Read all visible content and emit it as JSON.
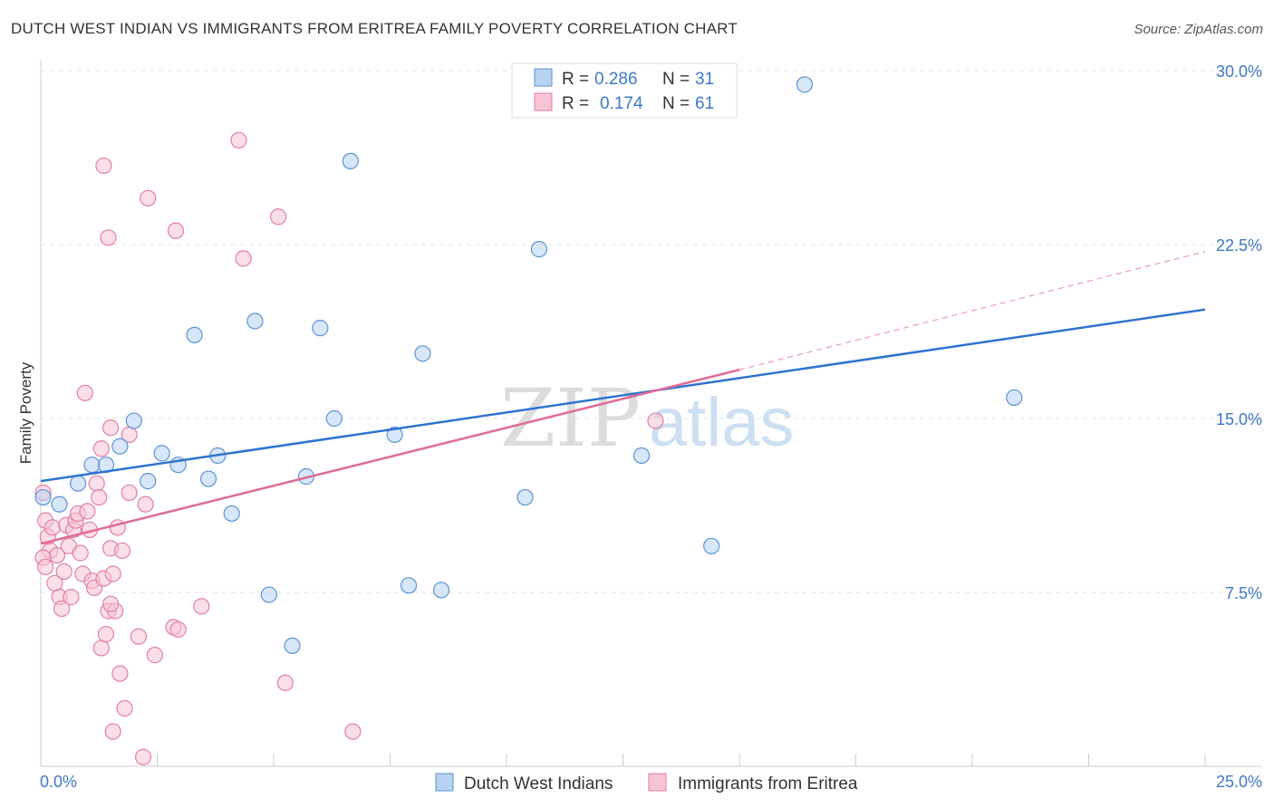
{
  "title": "DUTCH WEST INDIAN VS IMMIGRANTS FROM ERITREA FAMILY POVERTY CORRELATION CHART",
  "source": "Source: ZipAtlas.com",
  "watermark": {
    "zip": "ZIP",
    "atlas": "atlas"
  },
  "colors": {
    "blue_fill": "#b8d3f2",
    "blue_stroke": "#5b93d6",
    "blue_line": "#2f73d0",
    "pink_fill": "#f7c4d6",
    "pink_stroke": "#e27fa2",
    "pink_line": "#e06c96",
    "grid": "#e3e3e3",
    "tick_text": "#3d78c6"
  },
  "legend": {
    "rows": [
      {
        "r_label": "R =",
        "r_value": "0.286",
        "n_label": "N =",
        "n_value": "31"
      },
      {
        "r_label": "R =",
        "r_value": "0.174",
        "n_label": "N =",
        "n_value": "61"
      }
    ]
  },
  "bottom_legend": [
    {
      "label": "Dutch West Indians"
    },
    {
      "label": "Immigrants from Eritrea"
    }
  ],
  "chart_data": {
    "type": "scatter",
    "title": "DUTCH WEST INDIAN VS IMMIGRANTS FROM ERITREA FAMILY POVERTY CORRELATION CHART",
    "xlabel": "",
    "ylabel": "Family Poverty",
    "xlim": [
      0,
      25
    ],
    "ylim": [
      0,
      30
    ],
    "x_tick_labels": [
      "0.0%",
      "25.0%"
    ],
    "y_ticks": [
      7.5,
      15.0,
      22.5,
      30.0
    ],
    "y_tick_labels": [
      "7.5%",
      "15.0%",
      "22.5%",
      "30.0%"
    ],
    "grid": true,
    "legend_position": "top-center",
    "series": [
      {
        "name": "Dutch West Indians",
        "r": 0.286,
        "n": 31,
        "trend": {
          "x": [
            0,
            25
          ],
          "y": [
            12.3,
            19.7
          ],
          "dashed_extension": false
        },
        "points": [
          {
            "x": 0.05,
            "y": 11.6
          },
          {
            "x": 0.4,
            "y": 11.3
          },
          {
            "x": 0.8,
            "y": 12.2
          },
          {
            "x": 1.1,
            "y": 13.0
          },
          {
            "x": 1.4,
            "y": 13.0
          },
          {
            "x": 1.7,
            "y": 13.8
          },
          {
            "x": 2.0,
            "y": 14.9
          },
          {
            "x": 2.3,
            "y": 12.3
          },
          {
            "x": 2.6,
            "y": 13.5
          },
          {
            "x": 2.95,
            "y": 13.0
          },
          {
            "x": 3.3,
            "y": 18.6
          },
          {
            "x": 3.6,
            "y": 12.4
          },
          {
            "x": 3.8,
            "y": 13.4
          },
          {
            "x": 4.1,
            "y": 10.9
          },
          {
            "x": 4.6,
            "y": 19.2
          },
          {
            "x": 4.9,
            "y": 7.4
          },
          {
            "x": 5.4,
            "y": 5.2
          },
          {
            "x": 5.7,
            "y": 12.5
          },
          {
            "x": 6.0,
            "y": 18.9
          },
          {
            "x": 6.3,
            "y": 15.0
          },
          {
            "x": 6.65,
            "y": 26.1
          },
          {
            "x": 7.6,
            "y": 14.3
          },
          {
            "x": 7.9,
            "y": 7.8
          },
          {
            "x": 8.2,
            "y": 17.8
          },
          {
            "x": 8.6,
            "y": 7.6
          },
          {
            "x": 10.4,
            "y": 11.6
          },
          {
            "x": 10.7,
            "y": 22.3
          },
          {
            "x": 12.9,
            "y": 13.4
          },
          {
            "x": 14.4,
            "y": 9.5
          },
          {
            "x": 16.4,
            "y": 29.4
          },
          {
            "x": 20.9,
            "y": 15.9
          }
        ]
      },
      {
        "name": "Immigrants from Eritrea",
        "r": 0.174,
        "n": 61,
        "trend": {
          "x": [
            0,
            15
          ],
          "y": [
            9.6,
            17.1
          ],
          "dashed_extension_to": [
            25,
            22.2
          ]
        },
        "points": [
          {
            "x": 0.05,
            "y": 11.8
          },
          {
            "x": 0.1,
            "y": 10.6
          },
          {
            "x": 0.15,
            "y": 9.9
          },
          {
            "x": 0.2,
            "y": 9.3
          },
          {
            "x": 0.25,
            "y": 10.3
          },
          {
            "x": 0.3,
            "y": 7.9
          },
          {
            "x": 0.35,
            "y": 9.1
          },
          {
            "x": 0.4,
            "y": 7.3
          },
          {
            "x": 0.45,
            "y": 6.8
          },
          {
            "x": 0.5,
            "y": 8.4
          },
          {
            "x": 0.55,
            "y": 10.4
          },
          {
            "x": 0.6,
            "y": 9.5
          },
          {
            "x": 0.65,
            "y": 7.3
          },
          {
            "x": 0.7,
            "y": 10.2
          },
          {
            "x": 0.75,
            "y": 10.6
          },
          {
            "x": 0.8,
            "y": 10.9
          },
          {
            "x": 0.85,
            "y": 9.2
          },
          {
            "x": 0.9,
            "y": 8.3
          },
          {
            "x": 0.95,
            "y": 16.1
          },
          {
            "x": 1.0,
            "y": 11.0
          },
          {
            "x": 1.05,
            "y": 10.2
          },
          {
            "x": 1.1,
            "y": 8.0
          },
          {
            "x": 1.15,
            "y": 7.7
          },
          {
            "x": 1.2,
            "y": 12.2
          },
          {
            "x": 1.25,
            "y": 11.6
          },
          {
            "x": 1.3,
            "y": 5.1
          },
          {
            "x": 1.35,
            "y": 8.1
          },
          {
            "x": 1.4,
            "y": 5.7
          },
          {
            "x": 1.45,
            "y": 6.7
          },
          {
            "x": 1.5,
            "y": 9.4
          },
          {
            "x": 1.55,
            "y": 8.3
          },
          {
            "x": 1.6,
            "y": 6.7
          },
          {
            "x": 1.65,
            "y": 10.3
          },
          {
            "x": 1.7,
            "y": 4.0
          },
          {
            "x": 1.75,
            "y": 9.3
          },
          {
            "x": 1.3,
            "y": 13.7
          },
          {
            "x": 1.35,
            "y": 25.9
          },
          {
            "x": 1.45,
            "y": 22.8
          },
          {
            "x": 1.5,
            "y": 14.6
          },
          {
            "x": 1.5,
            "y": 7.0
          },
          {
            "x": 1.8,
            "y": 2.5
          },
          {
            "x": 1.55,
            "y": 1.5
          },
          {
            "x": 1.9,
            "y": 11.8
          },
          {
            "x": 1.9,
            "y": 14.3
          },
          {
            "x": 2.1,
            "y": 5.6
          },
          {
            "x": 2.2,
            "y": 0.4
          },
          {
            "x": 2.25,
            "y": 11.3
          },
          {
            "x": 2.3,
            "y": 24.5
          },
          {
            "x": 2.45,
            "y": 4.8
          },
          {
            "x": 2.85,
            "y": 6.0
          },
          {
            "x": 2.9,
            "y": 23.1
          },
          {
            "x": 2.95,
            "y": 5.9
          },
          {
            "x": 3.45,
            "y": 6.9
          },
          {
            "x": 4.25,
            "y": 27.0
          },
          {
            "x": 4.35,
            "y": 21.9
          },
          {
            "x": 5.1,
            "y": 23.7
          },
          {
            "x": 5.25,
            "y": 3.6
          },
          {
            "x": 6.7,
            "y": 1.5
          },
          {
            "x": 13.2,
            "y": 14.9
          },
          {
            "x": 0.05,
            "y": 9.0
          },
          {
            "x": 0.1,
            "y": 8.6
          }
        ]
      }
    ]
  }
}
